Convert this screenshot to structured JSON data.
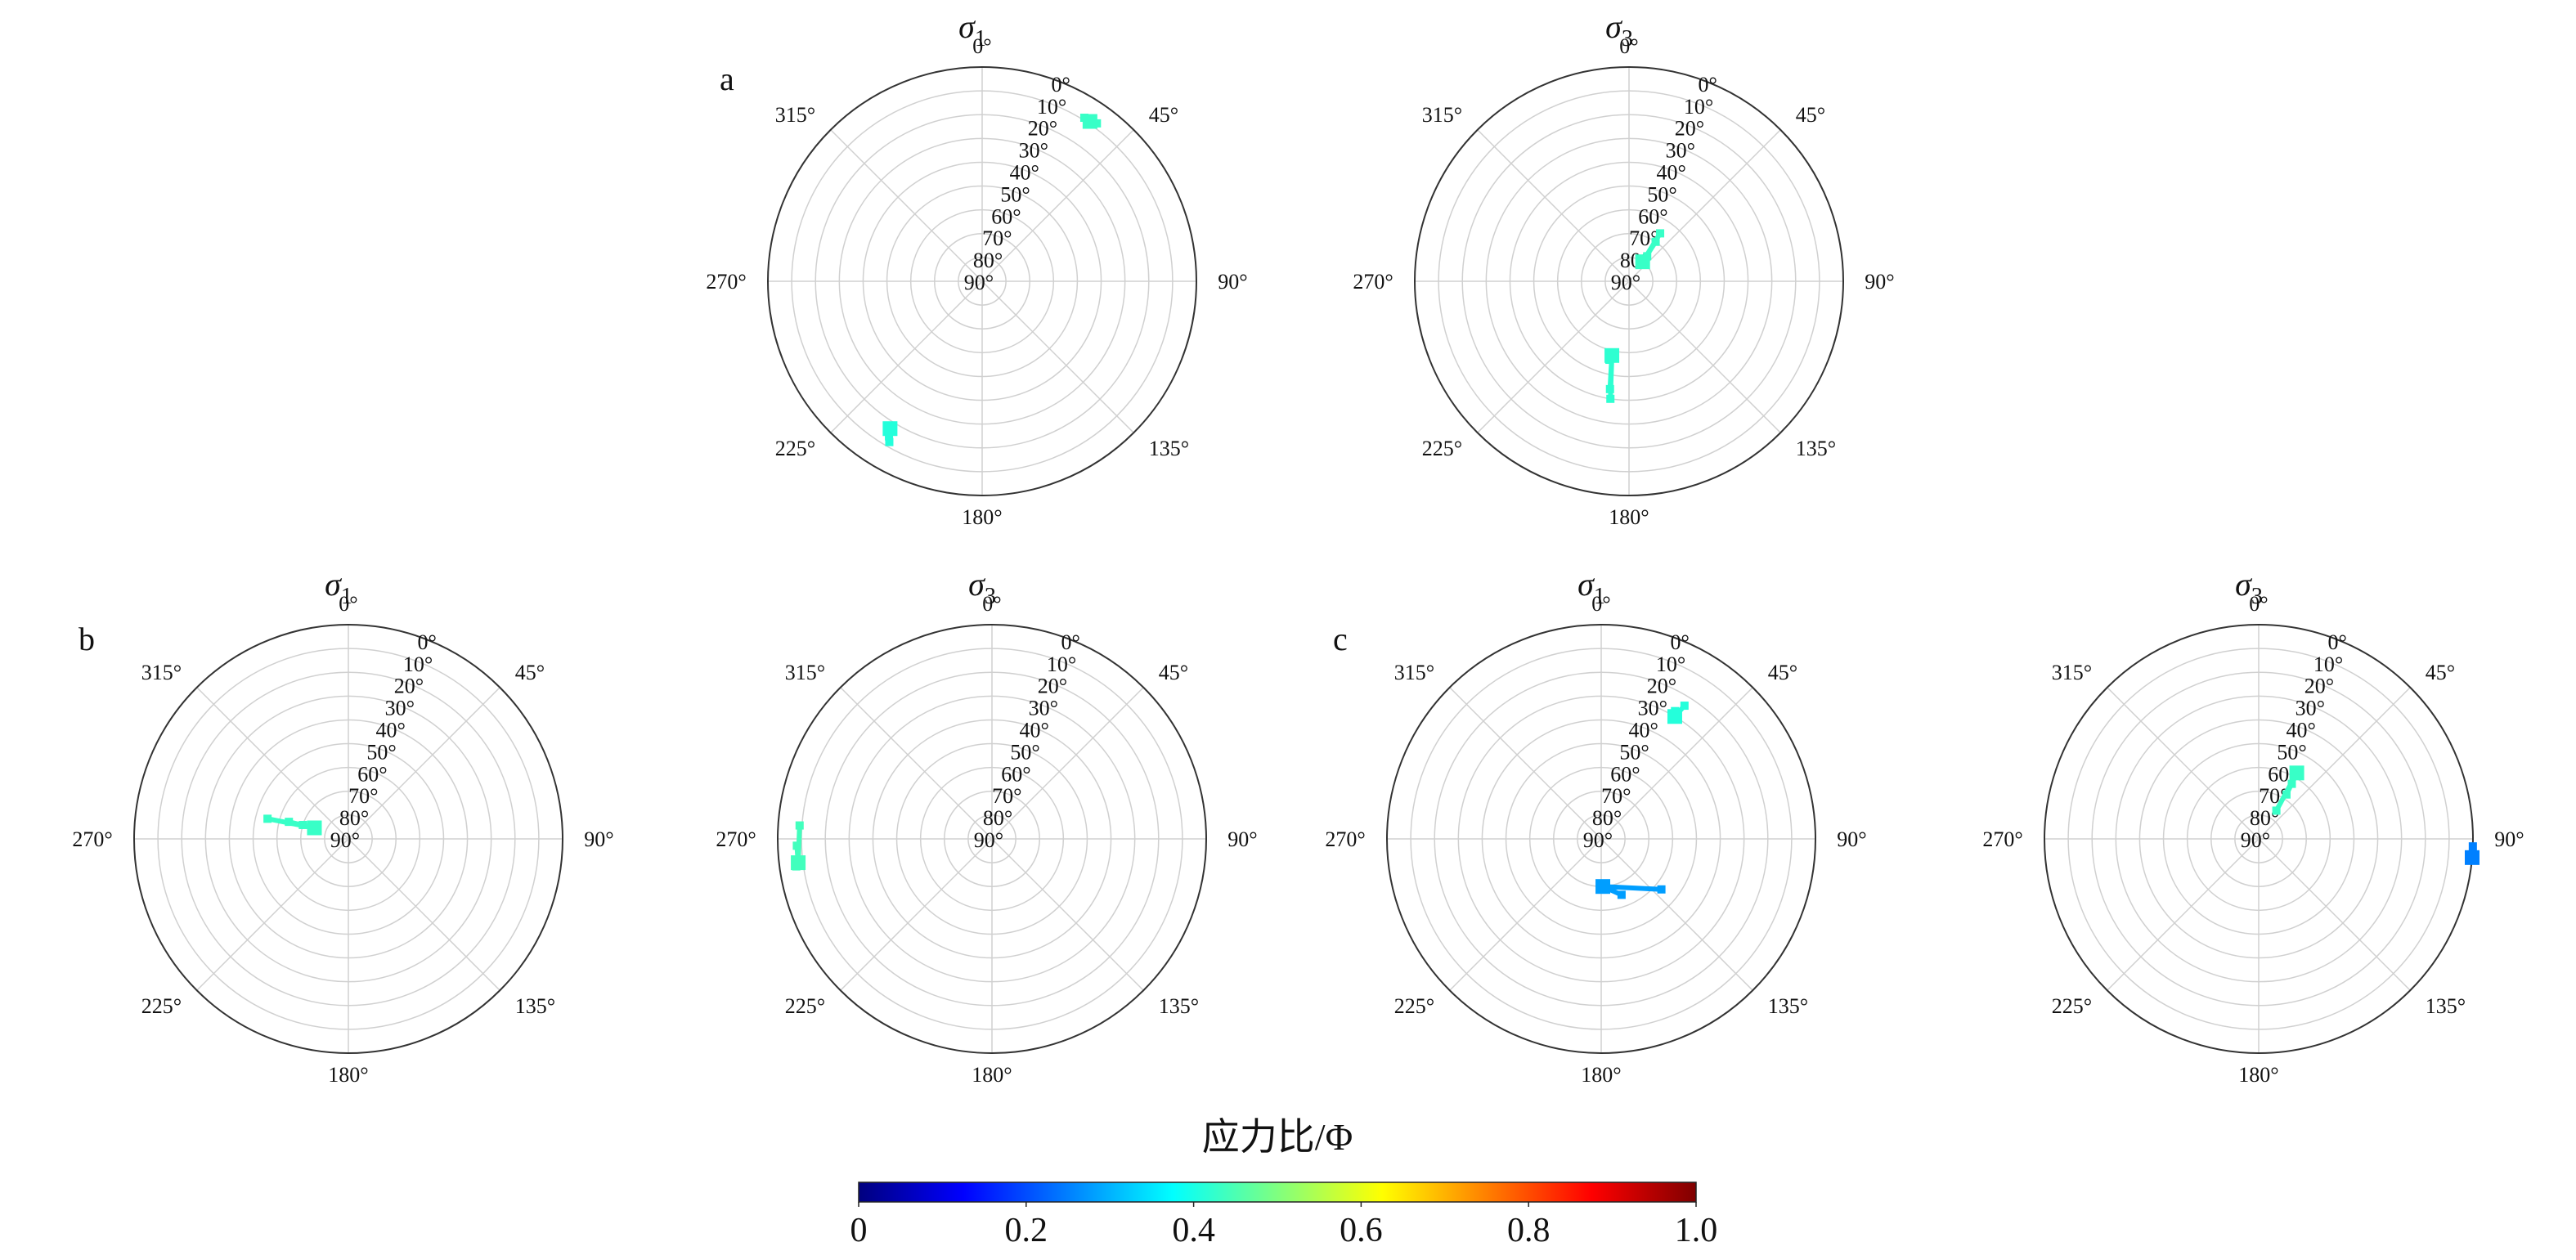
{
  "chart_data": {
    "type": "polar-stereonet",
    "angle_ticks": [
      "0°",
      "45°",
      "90°",
      "135°",
      "180°",
      "225°",
      "270°",
      "315°"
    ],
    "plunge_ticks": [
      "0°",
      "10°",
      "20°",
      "30°",
      "40°",
      "50°",
      "60°",
      "70°",
      "80°",
      "90°"
    ],
    "plunge_range": [
      0,
      90
    ],
    "grid": true,
    "colormap": "jet",
    "colors": {
      "phi_04": "#33f0c8",
      "phi_03": "#18b8f0",
      "phi_025": "#1e7fe0"
    },
    "colorbar": {
      "title": "应力比/Φ",
      "range": [
        0,
        1
      ],
      "ticks": [
        "0",
        "0.2",
        "0.4",
        "0.6",
        "0.8",
        "1.0"
      ]
    },
    "panels": [
      {
        "label": "a",
        "plots": [
          {
            "title": "σ",
            "title_sub": "1",
            "points": [
              {
                "azimuth": 34,
                "plunge": 9,
                "phi": 0.43,
                "spread": [
                  [
                    32,
                    9
                  ],
                  [
                    36,
                    8
                  ],
                  [
                    34,
                    10
                  ]
                ]
              },
              {
                "azimuth": 212,
                "plunge": 17,
                "phi": 0.41,
                "spread": [
                  [
                    213,
                    17
                  ],
                  [
                    211,
                    14
                  ],
                  [
                    210,
                    12
                  ]
                ]
              }
            ]
          },
          {
            "title": "σ",
            "title_sub": "3",
            "points": [
              {
                "azimuth": 193,
                "plunge": 58,
                "phi": 0.42,
                "spread": [
                  [
                    194,
                    56
                  ],
                  [
                    190,
                    44
                  ],
                  [
                    189,
                    40
                  ]
                ]
              },
              {
                "azimuth": 35,
                "plunge": 80,
                "phi": 0.43,
                "spread": [
                  [
                    36,
                    77
                  ],
                  [
                    33,
                    66
                  ],
                  [
                    34,
                    70
                  ]
                ]
              }
            ]
          }
        ]
      },
      {
        "label": "b",
        "plots": [
          {
            "title": "σ",
            "title_sub": "1",
            "points": [
              {
                "azimuth": 288,
                "plunge": 75,
                "phi": 0.43,
                "spread": [
                  [
                    284,
                    55
                  ],
                  [
                    286,
                    64
                  ],
                  [
                    287,
                    70
                  ]
                ]
              }
            ]
          },
          {
            "title": "σ",
            "title_sub": "3",
            "points": [
              {
                "azimuth": 263,
                "plunge": 8,
                "phi": 0.44,
                "spread": [
                  [
                    274,
                    9
                  ],
                  [
                    268,
                    8
                  ],
                  [
                    262,
                    7
                  ]
                ]
              }
            ]
          }
        ]
      },
      {
        "label": "c",
        "plots": [
          {
            "title": "σ",
            "title_sub": "1",
            "points": [
              {
                "azimuth": 31,
                "plunge": 30,
                "phi": 0.41,
                "spread": [
                  [
                    32,
                    24
                  ],
                  [
                    30,
                    28
                  ],
                  [
                    31,
                    30
                  ]
                ]
              },
              {
                "azimuth": 178,
                "plunge": 70,
                "phi": 0.28,
                "spread": [
                  [
                    130,
                    57
                  ],
                  [
                    160,
                    65
                  ],
                  [
                    175,
                    70
                  ]
                ]
              }
            ]
          },
          {
            "title": "σ",
            "title_sub": "3",
            "points": [
              {
                "azimuth": 30,
                "plunge": 58,
                "phi": 0.43,
                "spread": [
                  [
                    31,
                    63
                  ],
                  [
                    32,
                    68
                  ],
                  [
                    32,
                    76
                  ]
                ]
              },
              {
                "azimuth": 95,
                "plunge": 0,
                "phi": 0.25,
                "spread": [
                  [
                    92,
                    0
                  ],
                  [
                    95,
                    0
                  ]
                ]
              }
            ]
          }
        ]
      }
    ]
  }
}
